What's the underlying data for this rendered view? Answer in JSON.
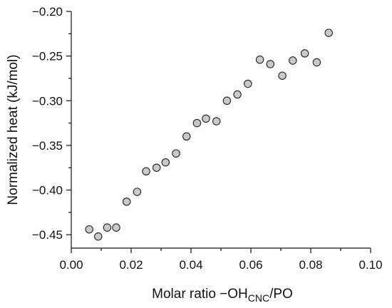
{
  "chart_data": {
    "type": "scatter",
    "xlabel": {
      "prefix": "Molar ratio −OH",
      "subscript": "CNC",
      "suffix": "/PO"
    },
    "ylabel": "Normalized heat (kJ/mol)",
    "xlim": [
      0.0,
      0.1
    ],
    "ylim": [
      -0.465,
      -0.2
    ],
    "x_ticks": [
      0.0,
      0.02,
      0.04,
      0.06,
      0.08,
      0.1
    ],
    "x_tick_labels": [
      "0.00",
      "0.02",
      "0.04",
      "0.06",
      "0.08",
      "0.10"
    ],
    "y_ticks": [
      -0.2,
      -0.25,
      -0.3,
      -0.35,
      -0.4,
      -0.45
    ],
    "y_tick_labels": [
      "−0.20",
      "−0.25",
      "−0.30",
      "−0.35",
      "−0.40",
      "−0.45"
    ],
    "grid": false,
    "marker_fill": "#c9c9c9",
    "marker_edge": "#222222",
    "points": [
      {
        "x": 0.006,
        "y": -0.444
      },
      {
        "x": 0.009,
        "y": -0.452
      },
      {
        "x": 0.012,
        "y": -0.442
      },
      {
        "x": 0.015,
        "y": -0.442
      },
      {
        "x": 0.0185,
        "y": -0.413
      },
      {
        "x": 0.022,
        "y": -0.402
      },
      {
        "x": 0.025,
        "y": -0.379
      },
      {
        "x": 0.0285,
        "y": -0.375
      },
      {
        "x": 0.0315,
        "y": -0.369
      },
      {
        "x": 0.035,
        "y": -0.359
      },
      {
        "x": 0.0385,
        "y": -0.34
      },
      {
        "x": 0.042,
        "y": -0.325
      },
      {
        "x": 0.045,
        "y": -0.32
      },
      {
        "x": 0.0485,
        "y": -0.323
      },
      {
        "x": 0.052,
        "y": -0.3
      },
      {
        "x": 0.0555,
        "y": -0.293
      },
      {
        "x": 0.059,
        "y": -0.281
      },
      {
        "x": 0.063,
        "y": -0.254
      },
      {
        "x": 0.0665,
        "y": -0.259
      },
      {
        "x": 0.0705,
        "y": -0.272
      },
      {
        "x": 0.074,
        "y": -0.255
      },
      {
        "x": 0.078,
        "y": -0.247
      },
      {
        "x": 0.082,
        "y": -0.257
      },
      {
        "x": 0.086,
        "y": -0.224
      }
    ]
  }
}
